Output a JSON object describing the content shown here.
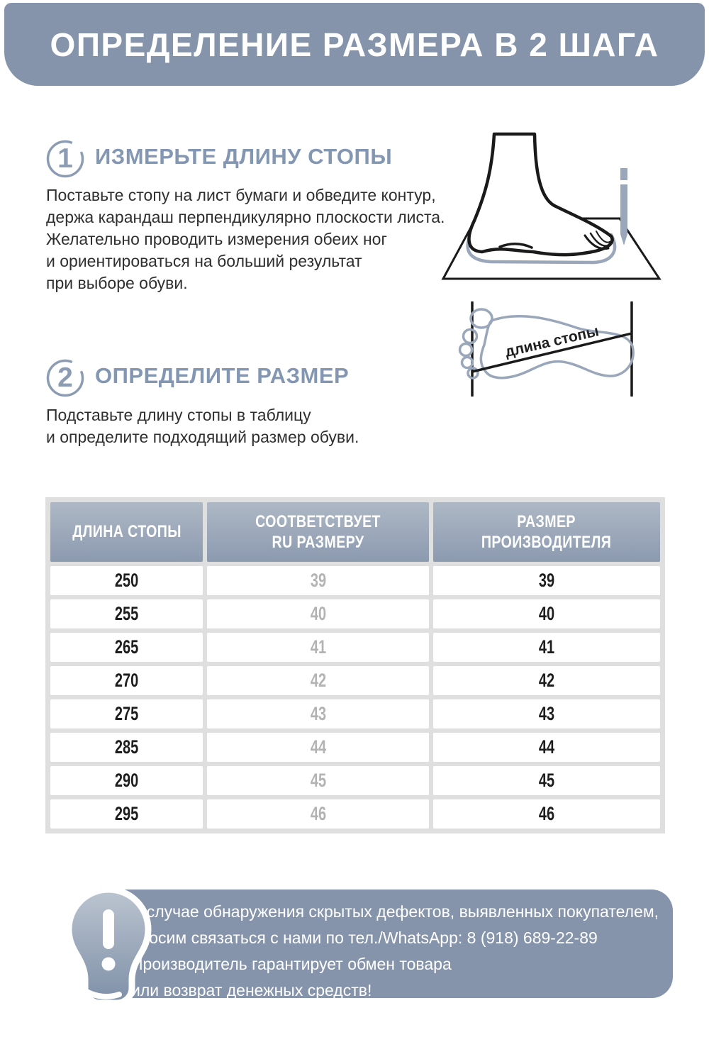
{
  "title": "ОПРЕДЕЛЕНИЕ РАЗМЕРА В 2 ШАГА",
  "colors": {
    "accent": "#8594ab",
    "heading": "#8497b2",
    "table_header_top": "#aeb8c5",
    "table_header_bottom": "#8c9ab0",
    "table_background": "#dfdfdf",
    "muted_number": "#b3b3b3",
    "body_text": "#2f2f2f"
  },
  "steps": [
    {
      "number": "1",
      "heading": "ИЗМЕРЬТЕ ДЛИНУ СТОПЫ",
      "body": [
        "Поставьте стопу на лист бумаги и обведите контур,",
        "держа карандаш перпендикулярно плоскости листа.",
        "Желательно проводить измерения обеих ног",
        "и ориентироваться на больший результат",
        "при выборе обуви."
      ]
    },
    {
      "number": "2",
      "heading": "ОПРЕДЕЛИТЕ РАЗМЕР",
      "body": [
        "Подставьте длину стопы в таблицу",
        "и определите подходящий размер обуви."
      ]
    }
  ],
  "foot_length_label": "длина стопы",
  "size_table": {
    "columns": [
      [
        "ДЛИНА СТОПЫ"
      ],
      [
        "СООТВЕТСТВУЕТ",
        "RU РАЗМЕРУ"
      ],
      [
        "РАЗМЕР",
        "ПРОИЗВОДИТЕЛЯ"
      ]
    ],
    "rows": [
      [
        "250",
        "39",
        "39"
      ],
      [
        "255",
        "40",
        "40"
      ],
      [
        "265",
        "41",
        "41"
      ],
      [
        "270",
        "42",
        "42"
      ],
      [
        "275",
        "43",
        "43"
      ],
      [
        "285",
        "44",
        "44"
      ],
      [
        "290",
        "45",
        "45"
      ],
      [
        "295",
        "46",
        "46"
      ]
    ]
  },
  "notice": {
    "lines": [
      "В случае обнаружения скрытых дефектов, выявленных покупателем,",
      "просим связаться с нами по тел./WhatsApp: 8 (918) 689-22-89",
      "Производитель гарантирует обмен товара",
      "или возврат денежных средств!"
    ]
  }
}
